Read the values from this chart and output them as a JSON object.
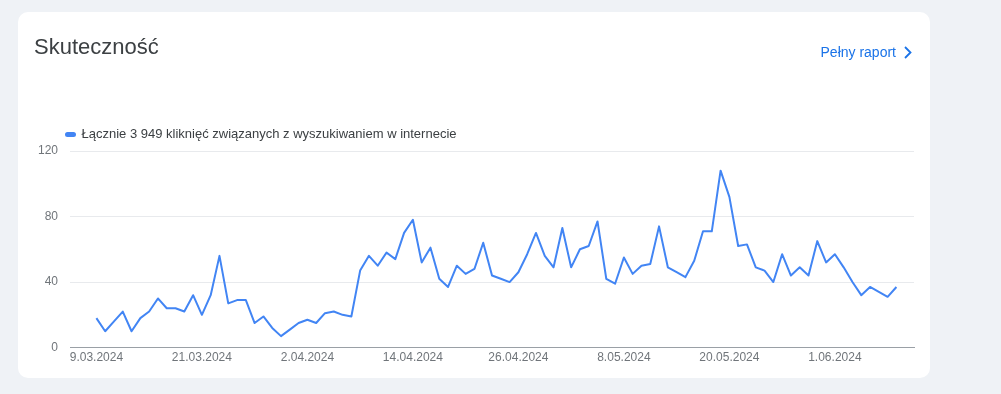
{
  "chart_data": {
    "type": "line",
    "title": "Skuteczność",
    "annotations": [
      "Pełny raport"
    ],
    "x": [
      "2024-03-09",
      "2024-03-10",
      "2024-03-11",
      "2024-03-12",
      "2024-03-13",
      "2024-03-14",
      "2024-03-15",
      "2024-03-16",
      "2024-03-17",
      "2024-03-18",
      "2024-03-19",
      "2024-03-20",
      "2024-03-21",
      "2024-03-22",
      "2024-03-23",
      "2024-03-24",
      "2024-03-25",
      "2024-03-26",
      "2024-03-27",
      "2024-03-28",
      "2024-03-29",
      "2024-03-30",
      "2024-03-31",
      "2024-04-01",
      "2024-04-02",
      "2024-04-03",
      "2024-04-04",
      "2024-04-05",
      "2024-04-06",
      "2024-04-07",
      "2024-04-08",
      "2024-04-09",
      "2024-04-10",
      "2024-04-11",
      "2024-04-12",
      "2024-04-13",
      "2024-04-14",
      "2024-04-15",
      "2024-04-16",
      "2024-04-17",
      "2024-04-18",
      "2024-04-19",
      "2024-04-20",
      "2024-04-21",
      "2024-04-22",
      "2024-04-23",
      "2024-04-24",
      "2024-04-25",
      "2024-04-26",
      "2024-04-27",
      "2024-04-28",
      "2024-04-29",
      "2024-04-30",
      "2024-05-01",
      "2024-05-02",
      "2024-05-03",
      "2024-05-04",
      "2024-05-05",
      "2024-05-06",
      "2024-05-07",
      "2024-05-08",
      "2024-05-09",
      "2024-05-10",
      "2024-05-11",
      "2024-05-12",
      "2024-05-13",
      "2024-05-14",
      "2024-05-15",
      "2024-05-16",
      "2024-05-17",
      "2024-05-18",
      "2024-05-19",
      "2024-05-20",
      "2024-05-21",
      "2024-05-22",
      "2024-05-23",
      "2024-05-24",
      "2024-05-25",
      "2024-05-26",
      "2024-05-27",
      "2024-05-28",
      "2024-05-29",
      "2024-05-30",
      "2024-05-31",
      "2024-06-01",
      "2024-06-02",
      "2024-06-03",
      "2024-06-04",
      "2024-06-05",
      "2024-06-06",
      "2024-06-07",
      "2024-06-08"
    ],
    "series": [
      {
        "name": "Łącznie 3 949 kliknięć związanych z wyszukiwaniem w internecie",
        "color": "#4285f4",
        "values": [
          18,
          10,
          16,
          22,
          10,
          18,
          22,
          30,
          24,
          24,
          22,
          32,
          20,
          32,
          56,
          27,
          29,
          29,
          15,
          19,
          12,
          7,
          11,
          15,
          17,
          15,
          21,
          22,
          20,
          19,
          47,
          56,
          50,
          58,
          54,
          70,
          78,
          52,
          61,
          42,
          37,
          50,
          45,
          48,
          64,
          44,
          42,
          40,
          46,
          57,
          70,
          56,
          49,
          73,
          49,
          60,
          62,
          77,
          42,
          39,
          55,
          45,
          50,
          51,
          74,
          49,
          46,
          43,
          53,
          71,
          71,
          108,
          92,
          62,
          63,
          49,
          47,
          40,
          57,
          44,
          49,
          44,
          65,
          52,
          57,
          49,
          40,
          32,
          37,
          34,
          31,
          37
        ]
      }
    ],
    "xlim": [
      "2024-03-06",
      "2024-06-10"
    ],
    "xticks": [
      {
        "value": "2024-03-09",
        "label": "9.03.2024"
      },
      {
        "value": "2024-03-21",
        "label": "21.03.2024"
      },
      {
        "value": "2024-04-02",
        "label": "2.04.2024"
      },
      {
        "value": "2024-04-14",
        "label": "14.04.2024"
      },
      {
        "value": "2024-04-26",
        "label": "26.04.2024"
      },
      {
        "value": "2024-05-08",
        "label": "8.05.2024"
      },
      {
        "value": "2024-05-20",
        "label": "20.05.2024"
      },
      {
        "value": "2024-06-01",
        "label": "1.06.2024"
      }
    ],
    "ylim": [
      0,
      120
    ],
    "yticks": [
      0,
      40,
      80,
      120
    ],
    "grid": "y",
    "legend": "top left",
    "marker": "none",
    "line_style": "solid"
  }
}
